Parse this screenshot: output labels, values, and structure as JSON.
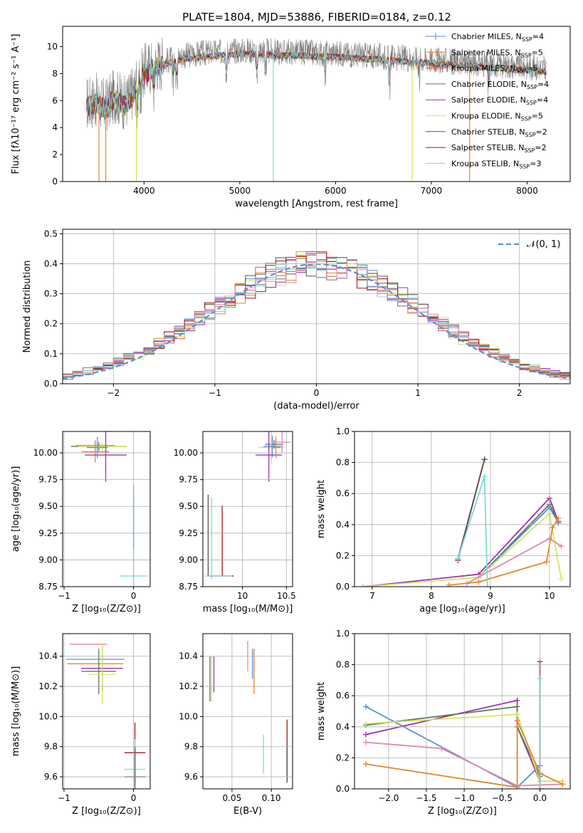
{
  "figure_title": "PLATE=1804, MJD=53886, FIBERID=0184, z=0.12",
  "colors": {
    "Chabrier MILES": "#5b8fd6",
    "Salpeter MILES": "#e6842a",
    "Kroupa MILES": "#e05050",
    "Chabrier ELODIE": "#5a7a5a",
    "Salpeter ELODIE": "#9b30b0",
    "Kroupa ELODIE": "#d4e65a",
    "Chabrier STELIB": "#555555",
    "Salpeter STELIB": "#a01818",
    "Kroupa STELIB": "#7fd8dc",
    "gray_spectrum": "#808080",
    "gauss": "#5b8fd6",
    "pink": "#e087b0"
  },
  "chart_data": [
    {
      "id": "spectrum",
      "type": "line",
      "title": "PLATE=1804, MJD=53886, FIBERID=0184, z=0.12",
      "xlabel": "wavelength [Angstrom, rest frame]",
      "ylabel": "Flux [fλ10⁻¹⁷ erg cm⁻² s⁻¹ A⁻¹]",
      "xlim": [
        3150,
        8450
      ],
      "ylim": [
        0,
        11.5
      ],
      "xticks": [
        4000,
        5000,
        6000,
        7000,
        8000
      ],
      "yticks": [
        0,
        2,
        4,
        6,
        8,
        10
      ],
      "legend_position": "top-right",
      "legend": [
        {
          "name": "Chabrier MILES, N",
          "sub": "SSP",
          "suffix": "=4"
        },
        {
          "name": "Salpeter MILES, N",
          "sub": "SSP",
          "suffix": "=5"
        },
        {
          "name": "Kroupa MILES, N",
          "sub": "SSP",
          "suffix": "=5"
        },
        {
          "name": "Chabrier ELODIE, N",
          "sub": "SSP",
          "suffix": "=4"
        },
        {
          "name": "Salpeter ELODIE, N",
          "sub": "SSP",
          "suffix": "=4"
        },
        {
          "name": "Kroupa ELODIE, N",
          "sub": "SSP",
          "suffix": "=5"
        },
        {
          "name": "Chabrier STELIB, N",
          "sub": "SSP",
          "suffix": "=2"
        },
        {
          "name": "Salpeter STELIB, N",
          "sub": "SSP",
          "suffix": "=2"
        },
        {
          "name": "Kroupa STELIB, N",
          "sub": "SSP",
          "suffix": "=3"
        }
      ],
      "envelope": {
        "x": [
          3400,
          3500,
          3600,
          3700,
          3800,
          3900,
          4000,
          4100,
          4200,
          4300,
          4400,
          4600,
          4800,
          5000,
          5200,
          5400,
          5600,
          5800,
          6000,
          6200,
          6400,
          6600,
          6800,
          7000,
          7200,
          7400,
          7600,
          7800,
          8000,
          8200
        ],
        "y": [
          5.8,
          6.0,
          5.6,
          6.4,
          5.8,
          6.8,
          8.2,
          8.6,
          8.9,
          9.1,
          9.3,
          9.5,
          9.6,
          9.7,
          9.7,
          9.6,
          9.6,
          9.5,
          9.5,
          9.4,
          9.3,
          9.2,
          9.1,
          9.0,
          8.9,
          8.8,
          8.7,
          8.6,
          8.5,
          8.4
        ]
      },
      "absorption_lines": [
        3934,
        3969,
        4102,
        4305,
        4341,
        4861,
        5175,
        5270,
        5890,
        6563,
        6870,
        7600
      ],
      "dropouts": [
        {
          "x": 3530,
          "y": 0,
          "color": "Salpeter MILES"
        },
        {
          "x": 3600,
          "y": 0,
          "color": "Salpeter MILES"
        },
        {
          "x": 3920,
          "y": 0,
          "color": "Kroupa ELODIE"
        },
        {
          "x": 5350,
          "y": 0,
          "color": "Kroupa STELIB"
        },
        {
          "x": 6800,
          "y": 0,
          "color": "Kroupa ELODIE"
        },
        {
          "x": 7400,
          "y": 0,
          "color": "Salpeter MILES"
        }
      ]
    },
    {
      "id": "residuals",
      "type": "histogram",
      "xlabel": "(data-model)/error",
      "ylabel": "Normed distribution",
      "xlim": [
        -2.5,
        2.5
      ],
      "ylim": [
        0,
        0.515
      ],
      "xticks": [
        -2,
        -1,
        0,
        1,
        2
      ],
      "yticks": [
        0.0,
        0.1,
        0.2,
        0.3,
        0.4,
        0.5
      ],
      "gauss_label": "𝒩(0, 1)",
      "legend_position": "top-right",
      "bin_width": 0.1
    },
    {
      "id": "age_vs_Z",
      "type": "errorbar",
      "xlabel": "Z [log₁₀(Z/Z⊙)]",
      "ylabel": "age  [log₁₀(age/yr)]",
      "xlim": [
        -1.02,
        0.24
      ],
      "ylim": [
        8.75,
        10.2
      ],
      "xticks": [
        -1,
        0
      ],
      "yticks": [
        8.75,
        9.0,
        9.25,
        9.5,
        9.75,
        10.0
      ],
      "points": [
        {
          "x": -0.55,
          "xerr": 0.28,
          "y": 10.07,
          "yerr": 0.05,
          "color": "pink"
        },
        {
          "x": -0.5,
          "xerr": 0.4,
          "y": 10.06,
          "yerr": 0.04,
          "color": "Chabrier ELODIE"
        },
        {
          "x": -0.45,
          "xerr": 0.35,
          "y": 10.06,
          "yerr": 0.04,
          "color": "Kroupa ELODIE"
        },
        {
          "x": -0.55,
          "xerr": 0.2,
          "y": 10.01,
          "yerr": 0.1,
          "color": "Salpeter MILES"
        },
        {
          "x": -0.4,
          "xerr": 0.3,
          "y": 9.98,
          "yerr": 0.25,
          "color": "Salpeter ELODIE"
        },
        {
          "x": -0.52,
          "xerr": 0.15,
          "y": 10.05,
          "yerr": 0.1,
          "color": "Chabrier MILES"
        },
        {
          "x": 0.0,
          "xerr": 0.2,
          "y": 8.85,
          "yerr": 0.75,
          "color": "Kroupa STELIB"
        },
        {
          "x": 0.0,
          "xerr": 0.0,
          "y": 9.4,
          "yerr": 0.3,
          "color": "Chabrier MILES"
        }
      ]
    },
    {
      "id": "age_vs_mass",
      "type": "errorbar",
      "xlabel": "mass [log₁₀(M/M⊙)]",
      "ylabel": "",
      "xlim": [
        9.55,
        10.57
      ],
      "ylim": [
        8.75,
        10.2
      ],
      "xticks": [
        10.0,
        10.5
      ],
      "yticks": [
        8.75,
        9.0,
        9.25,
        9.5,
        9.75,
        10.0
      ],
      "points": [
        {
          "x": 10.36,
          "xerr": 0.1,
          "y": 10.08,
          "yerr": 0.04,
          "color": "Chabrier ELODIE"
        },
        {
          "x": 10.33,
          "xerr": 0.15,
          "y": 10.05,
          "yerr": 0.15,
          "color": "Kroupa ELODIE"
        },
        {
          "x": 10.34,
          "xerr": 0.1,
          "y": 10.06,
          "yerr": 0.1,
          "color": "Chabrier MILES"
        },
        {
          "x": 10.3,
          "xerr": 0.15,
          "y": 9.98,
          "yerr": 0.25,
          "color": "Salpeter ELODIE"
        },
        {
          "x": 10.45,
          "xerr": 0.1,
          "y": 10.1,
          "yerr": 0.1,
          "color": "pink"
        },
        {
          "x": 10.38,
          "xerr": 0.05,
          "y": 10.05,
          "yerr": 0.1,
          "color": "Salpeter MILES"
        },
        {
          "x": 9.61,
          "xerr": 0.0,
          "y": 9.23,
          "yerr": 0.38,
          "color": "Chabrier STELIB"
        },
        {
          "x": 9.65,
          "xerr": 0.0,
          "y": 9.2,
          "yerr": 0.38,
          "color": "Kroupa STELIB"
        },
        {
          "x": 9.77,
          "xerr": 0.0,
          "y": 9.18,
          "yerr": 0.33,
          "color": "Salpeter STELIB"
        },
        {
          "x": 9.76,
          "xerr": 0.14,
          "y": 8.85,
          "yerr": 0.0,
          "color": "Salpeter STELIB"
        },
        {
          "x": 9.73,
          "xerr": 0.15,
          "y": 8.85,
          "yerr": 0.0,
          "color": "Kroupa STELIB"
        }
      ]
    },
    {
      "id": "mass_weight_vs_age",
      "type": "line",
      "xlabel": "age  [log₁₀(age/yr)]",
      "ylabel": "mass weight",
      "xlim": [
        6.7,
        10.35
      ],
      "ylim": [
        0,
        1.0
      ],
      "xticks": [
        7,
        8,
        9,
        10
      ],
      "yticks": [
        0.0,
        0.2,
        0.4,
        0.6,
        0.8,
        1.0
      ],
      "series": [
        {
          "color": "Salpeter ELODIE",
          "x": [
            6.85,
            8.8,
            10.0,
            10.15
          ],
          "y": [
            0.0,
            0.08,
            0.57,
            0.42
          ]
        },
        {
          "color": "Chabrier ELODIE",
          "x": [
            8.8,
            10.0,
            10.15
          ],
          "y": [
            0.06,
            0.53,
            0.42
          ]
        },
        {
          "color": "Chabrier MILES",
          "x": [
            8.8,
            10.0,
            10.15
          ],
          "y": [
            0.06,
            0.51,
            0.41
          ]
        },
        {
          "color": "Kroupa ELODIE",
          "x": [
            6.85,
            8.8,
            10.0,
            10.2
          ],
          "y": [
            0.0,
            0.06,
            0.47,
            0.05
          ]
        },
        {
          "color": "pink",
          "x": [
            8.6,
            10.0,
            10.2
          ],
          "y": [
            0.02,
            0.31,
            0.26
          ]
        },
        {
          "color": "Salpeter MILES",
          "x": [
            8.3,
            8.8,
            9.95,
            10.05,
            10.15
          ],
          "y": [
            0.01,
            0.03,
            0.16,
            0.38,
            0.44
          ]
        },
        {
          "color": "Salpeter STELIB",
          "x": [
            8.45,
            8.9
          ],
          "y": [
            0.17,
            0.82
          ]
        },
        {
          "color": "Chabrier STELIB",
          "x": [
            8.45,
            8.9
          ],
          "y": [
            0.18,
            0.82
          ]
        },
        {
          "color": "Kroupa STELIB",
          "x": [
            8.45,
            8.9,
            8.95
          ],
          "y": [
            0.18,
            0.71,
            0.0
          ]
        }
      ]
    },
    {
      "id": "mass_vs_Z",
      "type": "errorbar",
      "xlabel": "Z [log₁₀(Z/Z⊙)]",
      "ylabel": "mass [log₁₀(M/M⊙)]",
      "xlim": [
        -1.02,
        0.24
      ],
      "ylim": [
        9.52,
        10.55
      ],
      "xticks": [
        -1,
        0
      ],
      "yticks": [
        9.6,
        9.8,
        10.0,
        10.2,
        10.4
      ],
      "points": [
        {
          "x": -0.65,
          "xerr": 0.27,
          "y": 10.48,
          "yerr": 0.0,
          "color": "pink"
        },
        {
          "x": -0.55,
          "xerr": 0.42,
          "y": 10.38,
          "yerr": 0.0,
          "color": "Chabrier MILES"
        },
        {
          "x": -0.55,
          "xerr": 0.4,
          "y": 10.35,
          "yerr": 0.0,
          "color": "Salpeter MILES"
        },
        {
          "x": -0.5,
          "xerr": 0.25,
          "y": 10.3,
          "yerr": 0.15,
          "color": "Chabrier ELODIE"
        },
        {
          "x": -0.45,
          "xerr": 0.3,
          "y": 10.32,
          "yerr": 0.15,
          "color": "Salpeter ELODIE"
        },
        {
          "x": -0.45,
          "xerr": 0.2,
          "y": 10.28,
          "yerr": 0.2,
          "color": "Kroupa ELODIE"
        },
        {
          "x": 0.02,
          "xerr": 0.15,
          "y": 9.76,
          "yerr": 0.2,
          "color": "Salpeter STELIB"
        },
        {
          "x": 0.02,
          "xerr": 0.15,
          "y": 9.65,
          "yerr": 0.2,
          "color": "Kroupa STELIB"
        },
        {
          "x": 0.02,
          "xerr": 0.15,
          "y": 9.6,
          "yerr": 0.2,
          "color": "Chabrier STELIB"
        }
      ]
    },
    {
      "id": "mass_vs_EBV",
      "type": "errorbar",
      "xlabel": "E(B-V)",
      "ylabel": "",
      "xlim": [
        0.013,
        0.127
      ],
      "ylim": [
        9.52,
        10.55
      ],
      "xticks": [
        0.05,
        0.1
      ],
      "tick_labels": [
        "0.05",
        "0.10"
      ],
      "yticks": [
        9.6,
        9.8,
        10.0,
        10.2,
        10.4
      ],
      "points": [
        {
          "x": 0.022,
          "xerr": 0.0,
          "y": 10.25,
          "yerr": 0.15,
          "color": "Chabrier ELODIE"
        },
        {
          "x": 0.024,
          "xerr": 0.0,
          "y": 10.25,
          "yerr": 0.15,
          "color": "Kroupa ELODIE"
        },
        {
          "x": 0.027,
          "xerr": 0.0,
          "y": 10.28,
          "yerr": 0.12,
          "color": "Salpeter ELODIE"
        },
        {
          "x": 0.07,
          "xerr": 0.0,
          "y": 10.4,
          "yerr": 0.1,
          "color": "pink"
        },
        {
          "x": 0.076,
          "xerr": 0.0,
          "y": 10.35,
          "yerr": 0.1,
          "color": "Chabrier MILES"
        },
        {
          "x": 0.078,
          "xerr": 0.0,
          "y": 10.3,
          "yerr": 0.15,
          "color": "Salpeter MILES"
        },
        {
          "x": 0.09,
          "xerr": 0.0,
          "y": 9.75,
          "yerr": 0.13,
          "color": "Kroupa STELIB"
        },
        {
          "x": 0.12,
          "xerr": 0.0,
          "y": 9.78,
          "yerr": 0.2,
          "color": "Salpeter STELIB"
        },
        {
          "x": 0.12,
          "xerr": 0.0,
          "y": 9.7,
          "yerr": 0.14,
          "color": "Chabrier STELIB"
        }
      ]
    },
    {
      "id": "mass_weight_vs_Z",
      "type": "line",
      "xlabel": "Z [log₁₀(Z/Z⊙)]",
      "ylabel": "mass weight",
      "xlim": [
        -2.45,
        0.4
      ],
      "ylim": [
        0,
        1.0
      ],
      "xticks": [
        -2.0,
        -1.5,
        -1.0,
        -0.5,
        0.0
      ],
      "tick_labels": [
        "−2.0",
        "−1.5",
        "−1.0",
        "−0.5",
        "0.0"
      ],
      "yticks": [
        0.0,
        0.2,
        0.4,
        0.6,
        0.8,
        1.0
      ],
      "series": [
        {
          "color": "Chabrier MILES",
          "x": [
            -2.3,
            -0.3,
            0.0
          ],
          "y": [
            0.53,
            0.01,
            0.15
          ]
        },
        {
          "color": "Salpeter ELODIE",
          "x": [
            -2.3,
            -0.3,
            -0.3,
            0.0
          ],
          "y": [
            0.35,
            0.57,
            0.4,
            0.05
          ]
        },
        {
          "color": "Chabrier ELODIE",
          "x": [
            -2.3,
            -0.3,
            -0.3,
            0.0
          ],
          "y": [
            0.41,
            0.53,
            0.4,
            0.08
          ]
        },
        {
          "color": "Kroupa ELODIE",
          "x": [
            -2.3,
            -0.3,
            0.0,
            0.3
          ],
          "y": [
            0.42,
            0.48,
            0.05,
            0.05
          ]
        },
        {
          "color": "pink",
          "x": [
            -2.3,
            -1.3,
            -0.3,
            0.3
          ],
          "y": [
            0.3,
            0.26,
            0.02,
            0.03
          ]
        },
        {
          "color": "Salpeter MILES",
          "x": [
            -2.3,
            -0.3,
            -0.3,
            0.0,
            0.3
          ],
          "y": [
            0.16,
            0.01,
            0.44,
            0.1,
            0.03
          ]
        },
        {
          "color": "Salpeter STELIB",
          "x": [
            0.0,
            0.0
          ],
          "y": [
            0.0,
            0.82
          ]
        },
        {
          "color": "Kroupa STELIB",
          "x": [
            0.0,
            0.0
          ],
          "y": [
            0.0,
            0.71
          ]
        }
      ]
    }
  ]
}
